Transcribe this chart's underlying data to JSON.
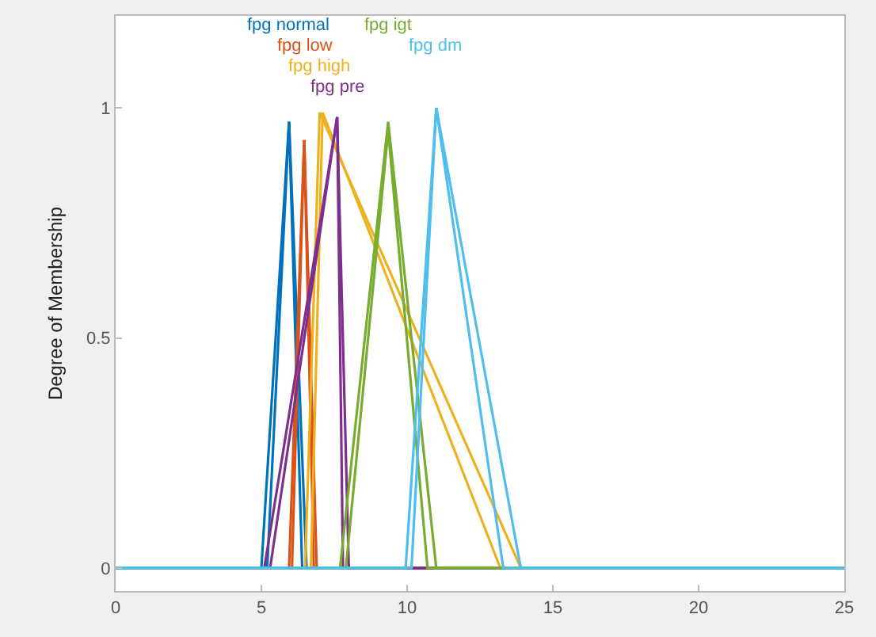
{
  "chart_data": {
    "type": "line",
    "ylabel": "Degree of Membership",
    "xlim": [
      0,
      25
    ],
    "xticks": [
      0,
      5,
      10,
      15,
      20,
      25
    ],
    "ylim": [
      -0.05,
      1.2
    ],
    "yticks": [
      0,
      0.5,
      1
    ],
    "grid": false,
    "legend": false,
    "marker": "none",
    "line_style": "solid",
    "series": [
      {
        "name": "fpg normal",
        "color": "#0072bd",
        "x": [
          0,
          5.0,
          5.95,
          6.55,
          25
        ],
        "values": [
          0,
          0,
          0.97,
          0,
          0
        ]
      },
      {
        "color": "#0072bd",
        "x": [
          0,
          5.2,
          5.95,
          6.4,
          25
        ],
        "values": [
          0,
          0,
          0.97,
          0,
          0
        ]
      },
      {
        "name": "fpg low",
        "color": "#d95319",
        "x": [
          0,
          5.95,
          6.47,
          6.9,
          25
        ],
        "values": [
          0,
          0,
          0.93,
          0,
          0
        ]
      },
      {
        "color": "#d95319",
        "x": [
          0,
          6.05,
          6.47,
          6.8,
          25
        ],
        "values": [
          0,
          0,
          0.93,
          0,
          0
        ]
      },
      {
        "name": "fpg high",
        "color": "#edb120",
        "x": [
          0,
          6.5,
          7.0,
          13.9,
          25
        ],
        "values": [
          0,
          0,
          0.99,
          0,
          0
        ]
      },
      {
        "color": "#edb120",
        "x": [
          0,
          6.7,
          7.1,
          13.2,
          25
        ],
        "values": [
          0,
          0,
          0.99,
          0,
          0
        ]
      },
      {
        "name": "fpg pre",
        "color": "#7e2f8e",
        "x": [
          0,
          5.1,
          7.6,
          8.0,
          25
        ],
        "values": [
          0,
          0,
          0.98,
          0,
          0
        ]
      },
      {
        "color": "#7e2f8e",
        "x": [
          0,
          5.3,
          7.6,
          7.8,
          25
        ],
        "values": [
          0,
          0,
          0.98,
          0,
          0
        ]
      },
      {
        "name": "fpg igt",
        "color": "#77ac30",
        "x": [
          0,
          7.7,
          9.35,
          11.0,
          25
        ],
        "values": [
          0,
          0,
          0.97,
          0,
          0
        ]
      },
      {
        "color": "#77ac30",
        "x": [
          0,
          7.9,
          9.35,
          10.7,
          25
        ],
        "values": [
          0,
          0,
          0.95,
          0,
          0
        ]
      },
      {
        "name": "fpg dm",
        "color": "#4dbeee",
        "x": [
          0,
          9.95,
          11.0,
          13.9,
          25
        ],
        "values": [
          0,
          0,
          1.0,
          0,
          0
        ]
      },
      {
        "color": "#4dbeee",
        "x": [
          0,
          10.15,
          11.0,
          13.3,
          25
        ],
        "values": [
          0,
          0,
          1.0,
          0,
          0
        ]
      }
    ]
  }
}
